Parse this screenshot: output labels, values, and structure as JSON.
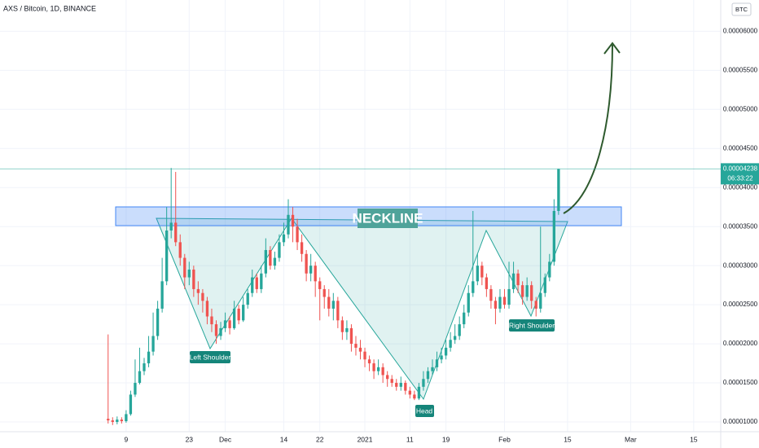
{
  "chart_data": {
    "type": "candlestick",
    "title": "AXS / Bitcoin, 1D, BINANCE",
    "currency": "BTC",
    "x": [
      "2020-11-05",
      "2020-11-06",
      "2020-11-07",
      "2020-11-08",
      "2020-11-09",
      "2020-11-10",
      "2020-11-11",
      "2020-11-12",
      "2020-11-13",
      "2020-11-14",
      "2020-11-15",
      "2020-11-16",
      "2020-11-17",
      "2020-11-18",
      "2020-11-19",
      "2020-11-20",
      "2020-11-21",
      "2020-11-22",
      "2020-11-23",
      "2020-11-24",
      "2020-11-25",
      "2020-11-26",
      "2020-11-27",
      "2020-11-28",
      "2020-11-29",
      "2020-11-30",
      "2020-12-01",
      "2020-12-02",
      "2020-12-03",
      "2020-12-04",
      "2020-12-05",
      "2020-12-06",
      "2020-12-07",
      "2020-12-08",
      "2020-12-09",
      "2020-12-10",
      "2020-12-11",
      "2020-12-12",
      "2020-12-13",
      "2020-12-14",
      "2020-12-15",
      "2020-12-16",
      "2020-12-17",
      "2020-12-18",
      "2020-12-19",
      "2020-12-20",
      "2020-12-21",
      "2020-12-22",
      "2020-12-23",
      "2020-12-24",
      "2020-12-25",
      "2020-12-26",
      "2020-12-27",
      "2020-12-28",
      "2020-12-29",
      "2020-12-30",
      "2020-12-31",
      "2021-01-01",
      "2021-01-02",
      "2021-01-03",
      "2021-01-04",
      "2021-01-05",
      "2021-01-06",
      "2021-01-07",
      "2021-01-08",
      "2021-01-09",
      "2021-01-10",
      "2021-01-11",
      "2021-01-12",
      "2021-01-13",
      "2021-01-14",
      "2021-01-15",
      "2021-01-16",
      "2021-01-17",
      "2021-01-18",
      "2021-01-19",
      "2021-01-20",
      "2021-01-21",
      "2021-01-22",
      "2021-01-23",
      "2021-01-24",
      "2021-01-25",
      "2021-01-26",
      "2021-01-27",
      "2021-01-28",
      "2021-01-29",
      "2021-01-30",
      "2021-01-31",
      "2021-02-01",
      "2021-02-02",
      "2021-02-03",
      "2021-02-04",
      "2021-02-05",
      "2021-02-06",
      "2021-02-07",
      "2021-02-08",
      "2021-02-09",
      "2021-02-10",
      "2021-02-11",
      "2021-02-12",
      "2021-02-13"
    ],
    "open": [
      1.04e-05,
      1.02e-05,
      1e-05,
      1.03e-05,
      1.01e-05,
      1.1e-05,
      1.35e-05,
      1.5e-05,
      1.65e-05,
      1.75e-05,
      1.9e-05,
      2.1e-05,
      2.45e-05,
      2.8e-05,
      3.45e-05,
      3.55e-05,
      3.3e-05,
      3.1e-05,
      2.85e-05,
      2.95e-05,
      2.7e-05,
      2.65e-05,
      2.55e-05,
      2.35e-05,
      2.25e-05,
      2.1e-05,
      2.2e-05,
      2.3e-05,
      2.2e-05,
      2.45e-05,
      2.3e-05,
      2.5e-05,
      2.65e-05,
      2.85e-05,
      2.7e-05,
      2.9e-05,
      3.2e-05,
      3e-05,
      3.1e-05,
      3.3e-05,
      3.4e-05,
      3.65e-05,
      3.5e-05,
      3.3e-05,
      3.15e-05,
      2.9e-05,
      3e-05,
      2.8e-05,
      2.7e-05,
      2.6e-05,
      2.45e-05,
      2.55e-05,
      2.3e-05,
      2.15e-05,
      2.2e-05,
      2e-05,
      1.95e-05,
      1.9e-05,
      1.8e-05,
      1.75e-05,
      1.65e-05,
      1.7e-05,
      1.6e-05,
      1.55e-05,
      1.5e-05,
      1.45e-05,
      1.5e-05,
      1.4e-05,
      1.35e-05,
      1.3e-05,
      1.45e-05,
      1.55e-05,
      1.65e-05,
      1.7e-05,
      1.8e-05,
      1.85e-05,
      1.95e-05,
      2.05e-05,
      2.1e-05,
      2.25e-05,
      2.4e-05,
      2.65e-05,
      2.8e-05,
      3e-05,
      2.85e-05,
      2.7e-05,
      2.55e-05,
      2.45e-05,
      2.6e-05,
      2.5e-05,
      2.7e-05,
      2.9e-05,
      2.75e-05,
      2.6e-05,
      2.75e-05,
      2.55e-05,
      2.45e-05,
      2.65e-05,
      2.85e-05,
      3.05e-05,
      3.7e-05
    ],
    "high": [
      2.12e-05,
      1.06e-05,
      1.07e-05,
      1.06e-05,
      1.15e-05,
      1.4e-05,
      1.8e-05,
      1.95e-05,
      1.82e-05,
      2.1e-05,
      2.4e-05,
      2.55e-05,
      3.1e-05,
      3.75e-05,
      4.25e-05,
      4.2e-05,
      3.4e-05,
      3.15e-05,
      3.05e-05,
      3e-05,
      2.8e-05,
      2.7e-05,
      2.6e-05,
      2.45e-05,
      2.3e-05,
      2.28e-05,
      2.4e-05,
      2.35e-05,
      2.55e-05,
      2.5e-05,
      2.6e-05,
      2.7e-05,
      2.95e-05,
      2.9e-05,
      3e-05,
      3.35e-05,
      3.25e-05,
      3.18e-05,
      3.4e-05,
      3.55e-05,
      3.85e-05,
      3.75e-05,
      3.6e-05,
      3.4e-05,
      3.2e-05,
      3.15e-05,
      3.05e-05,
      2.85e-05,
      2.75e-05,
      2.7e-05,
      2.65e-05,
      2.6e-05,
      2.35e-05,
      2.3e-05,
      2.25e-05,
      2.1e-05,
      2.05e-05,
      1.95e-05,
      1.85e-05,
      1.8e-05,
      1.8e-05,
      1.75e-05,
      1.65e-05,
      1.6e-05,
      1.55e-05,
      1.58e-05,
      1.53e-05,
      1.45e-05,
      1.4e-05,
      1.5e-05,
      1.65e-05,
      1.7e-05,
      1.8e-05,
      1.9e-05,
      1.95e-05,
      2.05e-05,
      2.15e-05,
      2.25e-05,
      2.35e-05,
      2.5e-05,
      2.75e-05,
      3.7e-05,
      3.15e-05,
      3.05e-05,
      2.9e-05,
      2.75e-05,
      2.6e-05,
      2.7e-05,
      2.7e-05,
      3.05e-05,
      3.05e-05,
      2.95e-05,
      2.8e-05,
      2.85e-05,
      2.8e-05,
      2.6e-05,
      3.5e-05,
      2.9e-05,
      3.15e-05,
      3.85e-05,
      4.238e-05
    ],
    "low": [
      9.8e-06,
      9.6e-06,
      9.7e-06,
      9.8e-06,
      9.9e-06,
      1.08e-05,
      1.32e-05,
      1.48e-05,
      1.6e-05,
      1.7e-05,
      1.85e-05,
      2.05e-05,
      2.4e-05,
      2.75e-05,
      3.35e-05,
      3.25e-05,
      3e-05,
      2.7e-05,
      2.75e-05,
      2.6e-05,
      2.5e-05,
      2.4e-05,
      2.25e-05,
      2.15e-05,
      2e-05,
      2.05e-05,
      2.15e-05,
      2.12e-05,
      2.18e-05,
      2.25e-05,
      2.28e-05,
      2.45e-05,
      2.6e-05,
      2.65e-05,
      2.65e-05,
      2.85e-05,
      2.95e-05,
      2.95e-05,
      3.05e-05,
      3.25e-05,
      3.35e-05,
      3.3e-05,
      3.2e-05,
      3.05e-05,
      2.8e-05,
      2.8e-05,
      2.6e-05,
      2.3e-05,
      2.45e-05,
      2.35e-05,
      2.3e-05,
      2.2e-05,
      2.05e-05,
      2.05e-05,
      1.9e-05,
      1.85e-05,
      1.8e-05,
      1.7e-05,
      1.65e-05,
      1.55e-05,
      1.6e-05,
      1.5e-05,
      1.45e-05,
      1.45e-05,
      1.4e-05,
      1.4e-05,
      1.35e-05,
      1.3e-05,
      1.28e-05,
      1.28e-05,
      1.4e-05,
      1.5e-05,
      1.6e-05,
      1.65e-05,
      1.75e-05,
      1.8e-05,
      1.9e-05,
      2e-05,
      2.05e-05,
      2.2e-05,
      2.35e-05,
      2.6e-05,
      2.75e-05,
      2.75e-05,
      2.6e-05,
      2.45e-05,
      2.25e-05,
      2.4e-05,
      2.45e-05,
      2.45e-05,
      2.65e-05,
      2.65e-05,
      2.5e-05,
      2.55e-05,
      2.45e-05,
      2.35e-05,
      2.4e-05,
      2.6e-05,
      2.8e-05,
      3e-05,
      3.65e-05
    ],
    "close": [
      1.02e-05,
      1e-05,
      1.03e-05,
      1.01e-05,
      1.1e-05,
      1.35e-05,
      1.5e-05,
      1.65e-05,
      1.75e-05,
      1.9e-05,
      2.1e-05,
      2.45e-05,
      2.8e-05,
      3.45e-05,
      3.55e-05,
      3.3e-05,
      3.1e-05,
      2.85e-05,
      2.95e-05,
      2.7e-05,
      2.65e-05,
      2.55e-05,
      2.35e-05,
      2.25e-05,
      2.1e-05,
      2.2e-05,
      2.3e-05,
      2.2e-05,
      2.45e-05,
      2.3e-05,
      2.5e-05,
      2.65e-05,
      2.85e-05,
      2.7e-05,
      2.9e-05,
      3.2e-05,
      3e-05,
      3.1e-05,
      3.3e-05,
      3.4e-05,
      3.65e-05,
      3.5e-05,
      3.3e-05,
      3.15e-05,
      2.9e-05,
      3e-05,
      2.8e-05,
      2.7e-05,
      2.6e-05,
      2.45e-05,
      2.55e-05,
      2.3e-05,
      2.15e-05,
      2.2e-05,
      2e-05,
      1.95e-05,
      1.9e-05,
      1.8e-05,
      1.75e-05,
      1.65e-05,
      1.7e-05,
      1.6e-05,
      1.55e-05,
      1.5e-05,
      1.45e-05,
      1.5e-05,
      1.4e-05,
      1.35e-05,
      1.3e-05,
      1.45e-05,
      1.55e-05,
      1.65e-05,
      1.7e-05,
      1.8e-05,
      1.85e-05,
      1.95e-05,
      2.05e-05,
      2.1e-05,
      2.25e-05,
      2.4e-05,
      2.65e-05,
      2.8e-05,
      3e-05,
      2.85e-05,
      2.7e-05,
      2.55e-05,
      2.45e-05,
      2.6e-05,
      2.5e-05,
      2.7e-05,
      2.9e-05,
      2.75e-05,
      2.6e-05,
      2.75e-05,
      2.55e-05,
      2.45e-05,
      2.65e-05,
      2.85e-05,
      3.05e-05,
      3.7e-05,
      4.238e-05
    ],
    "up_color": "#26a69a",
    "down_color": "#ef5350",
    "ylim": [
      8.75e-06,
      6.4e-05
    ],
    "yticks": [
      {
        "value": 1e-05,
        "label": "0.00001000"
      },
      {
        "value": 1.5e-05,
        "label": "0.00001500"
      },
      {
        "value": 2e-05,
        "label": "0.00002000"
      },
      {
        "value": 2.5e-05,
        "label": "0.00002500"
      },
      {
        "value": 3e-05,
        "label": "0.00003000"
      },
      {
        "value": 3.5e-05,
        "label": "0.00003500"
      },
      {
        "value": 4e-05,
        "label": "0.00004000"
      },
      {
        "value": 4.5e-05,
        "label": "0.00004500"
      },
      {
        "value": 5e-05,
        "label": "0.00005000"
      },
      {
        "value": 5.5e-05,
        "label": "0.00005500"
      },
      {
        "value": 6e-05,
        "label": "0.00006000"
      }
    ],
    "xlim": [
      "2020-10-12",
      "2021-03-21"
    ],
    "xticks": [
      {
        "value": "2020-11-09",
        "label": "9"
      },
      {
        "value": "2020-11-23",
        "label": "23"
      },
      {
        "value": "2020-12-01",
        "label": "Dec"
      },
      {
        "value": "2020-12-14",
        "label": "14"
      },
      {
        "value": "2020-12-22",
        "label": "22"
      },
      {
        "value": "2021-01-01",
        "label": "2021"
      },
      {
        "value": "2021-01-11",
        "label": "11"
      },
      {
        "value": "2021-01-19",
        "label": "19"
      },
      {
        "value": "2021-02-01",
        "label": "Feb"
      },
      {
        "value": "2021-02-15",
        "label": "15"
      },
      {
        "value": "2021-03-01",
        "label": "Mar"
      },
      {
        "value": "2021-03-15",
        "label": "15"
      }
    ],
    "grid": true,
    "last_price_label": "0.00004238",
    "countdown": "06:33:22",
    "annotations": {
      "neckline": "NECKLINE",
      "left_shoulder": "Left Shoulder",
      "head": "Head",
      "right_shoulder": "Right Shoulder"
    }
  }
}
